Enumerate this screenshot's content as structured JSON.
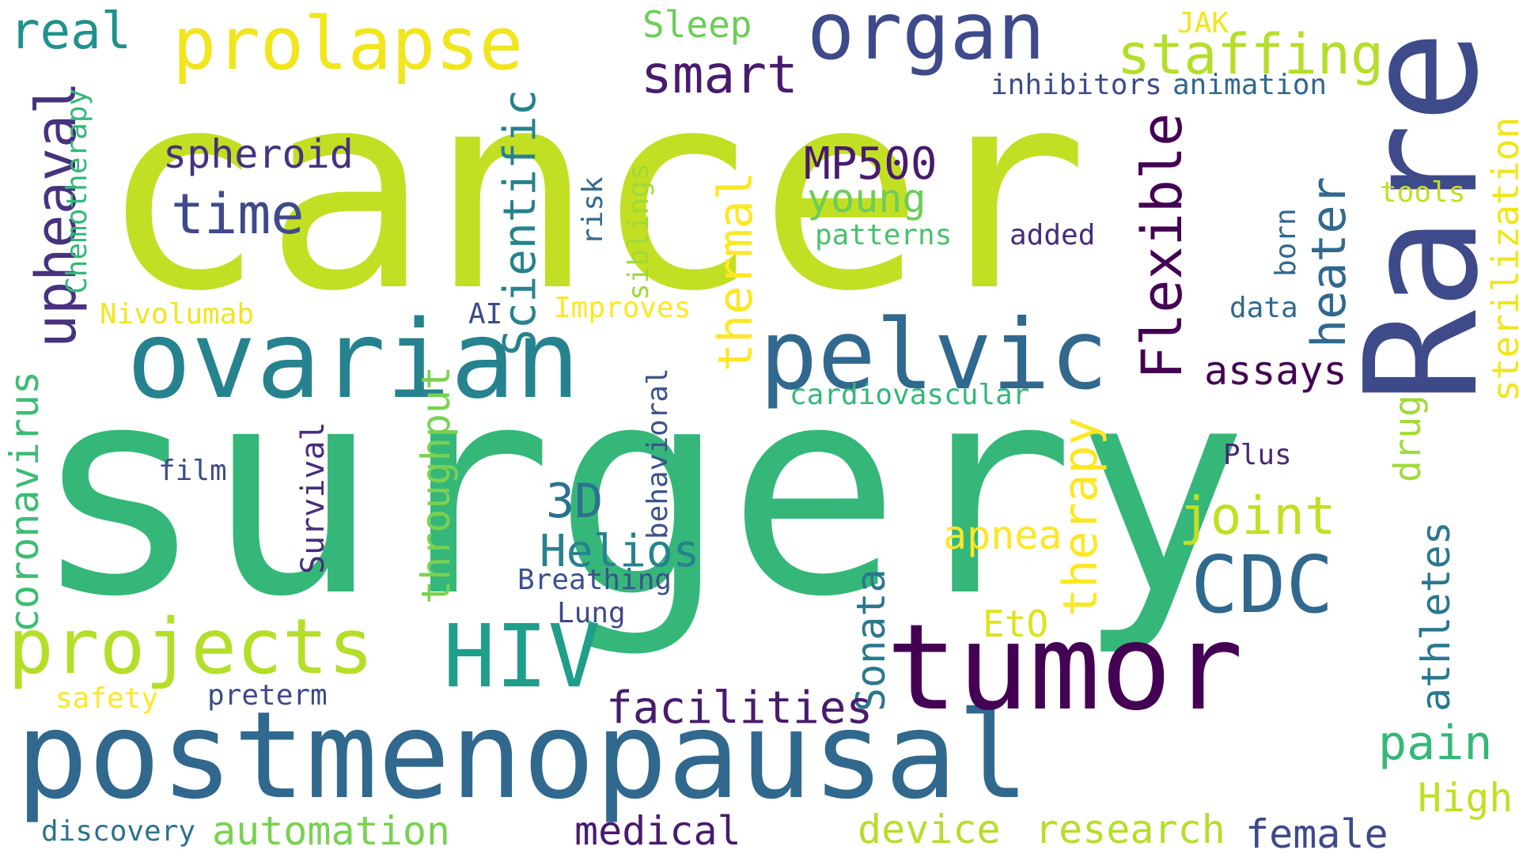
{
  "words": {
    "cancer": {
      "text": "cancer",
      "color": "#c2df23"
    },
    "surgery": {
      "text": "surgery",
      "color": "#35b779"
    },
    "rare": {
      "text": "Rare",
      "color": "#3e4a89"
    },
    "postmenopausal": {
      "text": "postmenopausal",
      "color": "#31688e"
    },
    "ovarian": {
      "text": "ovarian",
      "color": "#26828e"
    },
    "pelvic": {
      "text": "pelvic",
      "color": "#31688e"
    },
    "tumor": {
      "text": "tumor",
      "color": "#440154"
    },
    "projects": {
      "text": "projects",
      "color": "#b5de2b"
    },
    "hiv": {
      "text": "HIV",
      "color": "#1f9e89"
    },
    "cdc": {
      "text": "CDC",
      "color": "#31688e"
    },
    "organ": {
      "text": "organ",
      "color": "#3e4a89"
    },
    "prolapse": {
      "text": "prolapse",
      "color": "#f1e51d"
    },
    "staffing": {
      "text": "staffing",
      "color": "#b5de2b"
    },
    "smart": {
      "text": "smart",
      "color": "#481b6d"
    },
    "real": {
      "text": "real",
      "color": "#21918c"
    },
    "sleep": {
      "text": "Sleep",
      "color": "#6ccd5a"
    },
    "jak": {
      "text": "JAK",
      "color": "#f1e51d"
    },
    "inhibitors": {
      "text": "inhibitors",
      "color": "#3e4a89"
    },
    "animation": {
      "text": "animation",
      "color": "#31688e"
    },
    "upheaval": {
      "text": "upheaval",
      "color": "#46327e"
    },
    "chemotherapy": {
      "text": "Chemotherapy",
      "color": "#35b779"
    },
    "spheroid": {
      "text": "spheroid",
      "color": "#46327e"
    },
    "time": {
      "text": "time",
      "color": "#3e4a89"
    },
    "scientific": {
      "text": "Scientific",
      "color": "#26828e"
    },
    "risk": {
      "text": "risk",
      "color": "#31688e"
    },
    "siblings": {
      "text": "siblings",
      "color": "#a0da39"
    },
    "thermal": {
      "text": "thermal",
      "color": "#fde725"
    },
    "mp500": {
      "text": "MP500",
      "color": "#481b6d"
    },
    "young": {
      "text": "young",
      "color": "#6ccd5a"
    },
    "patterns": {
      "text": "patterns",
      "color": "#4ac16d"
    },
    "flexible": {
      "text": "Flexible",
      "color": "#440154"
    },
    "added": {
      "text": "added",
      "color": "#472d7b"
    },
    "born": {
      "text": "born",
      "color": "#31688e"
    },
    "heater": {
      "text": "heater",
      "color": "#31688e"
    },
    "tools": {
      "text": "tools",
      "color": "#c2df23"
    },
    "sterilization": {
      "text": "sterilization",
      "color": "#f1e51d"
    },
    "nivolumab": {
      "text": "Nivolumab",
      "color": "#f1e51d"
    },
    "ai": {
      "text": "AI",
      "color": "#3e4a89"
    },
    "improves": {
      "text": "Improves",
      "color": "#fde725"
    },
    "data": {
      "text": "data",
      "color": "#31688e"
    },
    "assays": {
      "text": "assays",
      "color": "#440154"
    },
    "cardiovascular": {
      "text": "cardiovascular",
      "color": "#35b779"
    },
    "coronavirus": {
      "text": "coronavirus",
      "color": "#3dbc74"
    },
    "throughput": {
      "text": "throughput",
      "color": "#7ad151"
    },
    "film": {
      "text": "film",
      "color": "#3e4a89"
    },
    "survival": {
      "text": "Survival",
      "color": "#472d7b"
    },
    "behavioral": {
      "text": "behavioral",
      "color": "#3b528b"
    },
    "3d": {
      "text": "3D",
      "color": "#2c728e"
    },
    "helios": {
      "text": "Helios",
      "color": "#26828e"
    },
    "breathing": {
      "text": "Breathing",
      "color": "#3b528b"
    },
    "lung": {
      "text": "Lung",
      "color": "#3e4a89"
    },
    "therapy": {
      "text": "therapy",
      "color": "#fde725"
    },
    "apnea": {
      "text": "apnea",
      "color": "#fde725"
    },
    "joint": {
      "text": "joint",
      "color": "#c2df23"
    },
    "drug": {
      "text": "drug",
      "color": "#a0da39"
    },
    "plus": {
      "text": "Plus",
      "color": "#482878"
    },
    "athletes": {
      "text": "athletes",
      "color": "#2a788e"
    },
    "eto": {
      "text": "EtO",
      "color": "#dde318"
    },
    "sonata": {
      "text": "Sonata",
      "color": "#2a788e"
    },
    "facilities": {
      "text": "facilities",
      "color": "#481b6d"
    },
    "pain": {
      "text": "pain",
      "color": "#35b779"
    },
    "high": {
      "text": "High",
      "color": "#c2df23"
    },
    "safety": {
      "text": "safety",
      "color": "#fde725"
    },
    "preterm": {
      "text": "preterm",
      "color": "#3e4a89"
    },
    "discovery": {
      "text": "discovery",
      "color": "#2c728e"
    },
    "automation": {
      "text": "automation",
      "color": "#7ad151"
    },
    "medical": {
      "text": "medical",
      "color": "#481b6d"
    },
    "device": {
      "text": "device",
      "color": "#b5de2b"
    },
    "research": {
      "text": "research",
      "color": "#b5de2b"
    },
    "female": {
      "text": "female",
      "color": "#3e4a89"
    }
  }
}
